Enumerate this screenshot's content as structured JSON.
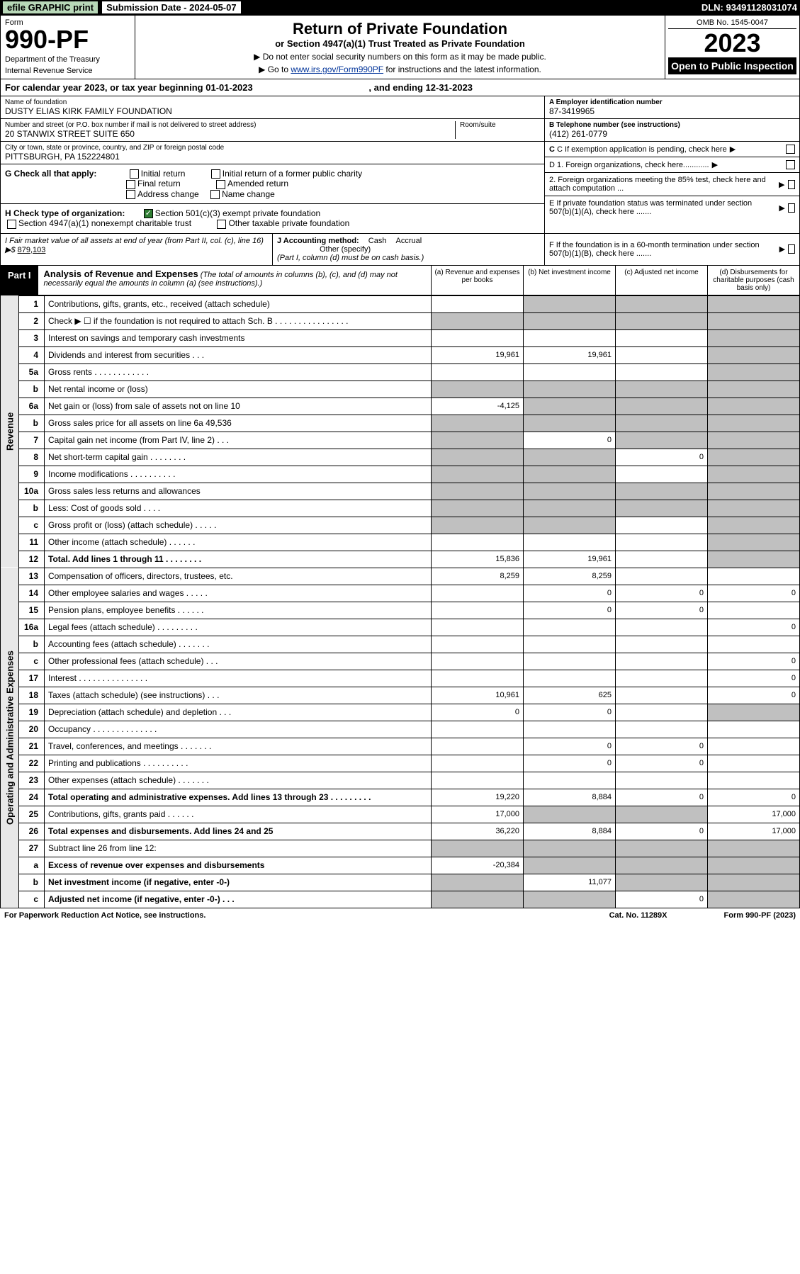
{
  "topbar": {
    "efile": "efile GRAPHIC print",
    "subdate_label": "Submission Date - 2024-05-07",
    "dln": "DLN: 93491128031074"
  },
  "header": {
    "form_label": "Form",
    "form_number": "990-PF",
    "dept": "Department of the Treasury",
    "irs": "Internal Revenue Service",
    "title": "Return of Private Foundation",
    "subtitle": "or Section 4947(a)(1) Trust Treated as Private Foundation",
    "note1": "▶ Do not enter social security numbers on this form as it may be made public.",
    "note2_pre": "▶ Go to ",
    "note2_link": "www.irs.gov/Form990PF",
    "note2_post": " for instructions and the latest information.",
    "omb": "OMB No. 1545-0047",
    "year": "2023",
    "open_public": "Open to Public Inspection"
  },
  "calendar": {
    "text_pre": "For calendar year 2023, or tax year beginning ",
    "begin": "01-01-2023",
    "text_mid": " , and ending ",
    "end": "12-31-2023"
  },
  "entity": {
    "name_label": "Name of foundation",
    "name": "DUSTY ELIAS KIRK FAMILY FOUNDATION",
    "addr_label": "Number and street (or P.O. box number if mail is not delivered to street address)",
    "addr": "20 STANWIX STREET SUITE 650",
    "room_label": "Room/suite",
    "city_label": "City or town, state or province, country, and ZIP or foreign postal code",
    "city": "PITTSBURGH, PA  152224801",
    "ein_label": "A Employer identification number",
    "ein": "87-3419965",
    "tel_label": "B Telephone number (see instructions)",
    "tel": "(412) 261-0779",
    "c_label": "C If exemption application is pending, check here"
  },
  "checks": {
    "g_label": "G Check all that apply:",
    "initial": "Initial return",
    "initial_former": "Initial return of a former public charity",
    "final": "Final return",
    "amended": "Amended return",
    "addr_change": "Address change",
    "name_change": "Name change",
    "h_label": "H Check type of organization:",
    "h_501c3": "Section 501(c)(3) exempt private foundation",
    "h_4947": "Section 4947(a)(1) nonexempt charitable trust",
    "h_other_tax": "Other taxable private foundation",
    "i_label": "I Fair market value of all assets at end of year (from Part II, col. (c), line 16) ▶$",
    "i_value": "879,103",
    "j_label": "J Accounting method:",
    "j_cash": "Cash",
    "j_accrual": "Accrual",
    "j_other": "Other (specify)",
    "j_note": "(Part I, column (d) must be on cash basis.)",
    "d1": "D 1. Foreign organizations, check here............",
    "d2": "2. Foreign organizations meeting the 85% test, check here and attach computation ...",
    "e": "E  If private foundation status was terminated under section 507(b)(1)(A), check here .......",
    "f": "F  If the foundation is in a 60-month termination under section 507(b)(1)(B), check here .......",
    "arrow": "▶"
  },
  "part1": {
    "label": "Part I",
    "title": "Analysis of Revenue and Expenses",
    "title_note": " (The total of amounts in columns (b), (c), and (d) may not necessarily equal the amounts in column (a) (see instructions).)",
    "col_a": "(a)  Revenue and expenses per books",
    "col_b": "(b)  Net investment income",
    "col_c": "(c)  Adjusted net income",
    "col_d": "(d)  Disbursements for charitable purposes (cash basis only)"
  },
  "side": {
    "revenue": "Revenue",
    "expenses": "Operating and Administrative Expenses"
  },
  "rows": [
    {
      "n": "1",
      "desc": "Contributions, gifts, grants, etc., received (attach schedule)",
      "a": "",
      "b": "grey",
      "c": "grey",
      "d": "grey"
    },
    {
      "n": "2",
      "desc": "Check ▶ ☐ if the foundation is not required to attach Sch. B   .  .  .  .  .  .  .  .  .  .  .  .  .  .  .  .",
      "a": "grey",
      "b": "grey",
      "c": "grey",
      "d": "grey"
    },
    {
      "n": "3",
      "desc": "Interest on savings and temporary cash investments",
      "a": "",
      "b": "",
      "c": "",
      "d": "grey"
    },
    {
      "n": "4",
      "desc": "Dividends and interest from securities   .  .  .",
      "a": "19,961",
      "b": "19,961",
      "c": "",
      "d": "grey"
    },
    {
      "n": "5a",
      "desc": "Gross rents   .  .  .  .  .  .  .  .  .  .  .  .",
      "a": "",
      "b": "",
      "c": "",
      "d": "grey"
    },
    {
      "n": "b",
      "desc": "Net rental income or (loss)  ",
      "a": "grey",
      "b": "grey",
      "c": "grey",
      "d": "grey"
    },
    {
      "n": "6a",
      "desc": "Net gain or (loss) from sale of assets not on line 10",
      "a": "-4,125",
      "b": "grey",
      "c": "grey",
      "d": "grey"
    },
    {
      "n": "b",
      "desc": "Gross sales price for all assets on line 6a           49,536",
      "a": "grey",
      "b": "grey",
      "c": "grey",
      "d": "grey"
    },
    {
      "n": "7",
      "desc": "Capital gain net income (from Part IV, line 2)   .  .  .",
      "a": "grey",
      "b": "0",
      "c": "grey",
      "d": "grey"
    },
    {
      "n": "8",
      "desc": "Net short-term capital gain  .  .  .  .  .  .  .  .",
      "a": "grey",
      "b": "grey",
      "c": "0",
      "d": "grey"
    },
    {
      "n": "9",
      "desc": "Income modifications .  .  .  .  .  .  .  .  .  .",
      "a": "grey",
      "b": "grey",
      "c": "",
      "d": "grey"
    },
    {
      "n": "10a",
      "desc": "Gross sales less returns and allowances",
      "a": "grey",
      "b": "grey",
      "c": "grey",
      "d": "grey"
    },
    {
      "n": "b",
      "desc": "Less: Cost of goods sold    .  .  .  .",
      "a": "grey",
      "b": "grey",
      "c": "grey",
      "d": "grey"
    },
    {
      "n": "c",
      "desc": "Gross profit or (loss) (attach schedule)    .  .  .  .  .",
      "a": "grey",
      "b": "grey",
      "c": "",
      "d": "grey"
    },
    {
      "n": "11",
      "desc": "Other income (attach schedule)    .  .  .  .  .  .",
      "a": "",
      "b": "",
      "c": "",
      "d": "grey"
    },
    {
      "n": "12",
      "desc": "Total. Add lines 1 through 11   .  .  .  .  .  .  .  .",
      "a": "15,836",
      "b": "19,961",
      "c": "",
      "d": "grey",
      "bold": true
    },
    {
      "n": "13",
      "desc": "Compensation of officers, directors, trustees, etc.",
      "a": "8,259",
      "b": "8,259",
      "c": "",
      "d": ""
    },
    {
      "n": "14",
      "desc": "Other employee salaries and wages    .  .  .  .  .",
      "a": "",
      "b": "0",
      "c": "0",
      "d": "0"
    },
    {
      "n": "15",
      "desc": "Pension plans, employee benefits  .  .  .  .  .  .",
      "a": "",
      "b": "0",
      "c": "0",
      "d": ""
    },
    {
      "n": "16a",
      "desc": "Legal fees (attach schedule) .  .  .  .  .  .  .  .  .",
      "a": "",
      "b": "",
      "c": "",
      "d": "0"
    },
    {
      "n": "b",
      "desc": "Accounting fees (attach schedule) .  .  .  .  .  .  .",
      "a": "",
      "b": "",
      "c": "",
      "d": ""
    },
    {
      "n": "c",
      "desc": "Other professional fees (attach schedule)    .  .  .",
      "a": "",
      "b": "",
      "c": "",
      "d": "0"
    },
    {
      "n": "17",
      "desc": "Interest .  .  .  .  .  .  .  .  .  .  .  .  .  .  .",
      "a": "",
      "b": "",
      "c": "",
      "d": "0"
    },
    {
      "n": "18",
      "desc": "Taxes (attach schedule) (see instructions)    .  .  .",
      "a": "10,961",
      "b": "625",
      "c": "",
      "d": "0"
    },
    {
      "n": "19",
      "desc": "Depreciation (attach schedule) and depletion    .  .  .",
      "a": "0",
      "b": "0",
      "c": "",
      "d": "grey"
    },
    {
      "n": "20",
      "desc": "Occupancy .  .  .  .  .  .  .  .  .  .  .  .  .  .",
      "a": "",
      "b": "",
      "c": "",
      "d": ""
    },
    {
      "n": "21",
      "desc": "Travel, conferences, and meetings .  .  .  .  .  .  .",
      "a": "",
      "b": "0",
      "c": "0",
      "d": ""
    },
    {
      "n": "22",
      "desc": "Printing and publications .  .  .  .  .  .  .  .  .  .",
      "a": "",
      "b": "0",
      "c": "0",
      "d": ""
    },
    {
      "n": "23",
      "desc": "Other expenses (attach schedule) .  .  .  .  .  .  .",
      "a": "",
      "b": "",
      "c": "",
      "d": ""
    },
    {
      "n": "24",
      "desc": "Total operating and administrative expenses. Add lines 13 through 23   .  .  .  .  .  .  .  .  .",
      "a": "19,220",
      "b": "8,884",
      "c": "0",
      "d": "0",
      "bold": true
    },
    {
      "n": "25",
      "desc": "Contributions, gifts, grants paid    .  .  .  .  .  .",
      "a": "17,000",
      "b": "grey",
      "c": "grey",
      "d": "17,000"
    },
    {
      "n": "26",
      "desc": "Total expenses and disbursements. Add lines 24 and 25",
      "a": "36,220",
      "b": "8,884",
      "c": "0",
      "d": "17,000",
      "bold": true
    },
    {
      "n": "27",
      "desc": "Subtract line 26 from line 12:",
      "a": "grey",
      "b": "grey",
      "c": "grey",
      "d": "grey"
    },
    {
      "n": "a",
      "desc": "Excess of revenue over expenses and disbursements",
      "a": "-20,384",
      "b": "grey",
      "c": "grey",
      "d": "grey",
      "bold": true
    },
    {
      "n": "b",
      "desc": "Net investment income (if negative, enter -0-)",
      "a": "grey",
      "b": "11,077",
      "c": "grey",
      "d": "grey",
      "bold": true
    },
    {
      "n": "c",
      "desc": "Adjusted net income (if negative, enter -0-)   .  .  .",
      "a": "grey",
      "b": "grey",
      "c": "0",
      "d": "grey",
      "bold": true
    }
  ],
  "footer": {
    "left": "For Paperwork Reduction Act Notice, see instructions.",
    "mid": "Cat. No. 11289X",
    "right": "Form 990-PF (2023)"
  },
  "colors": {
    "black": "#000000",
    "grey_cell": "#c0c0c0",
    "side_grey": "#e8e8e8",
    "link": "#003399",
    "green_check": "#2e7d32",
    "efile_bg": "#b8d8b8"
  }
}
